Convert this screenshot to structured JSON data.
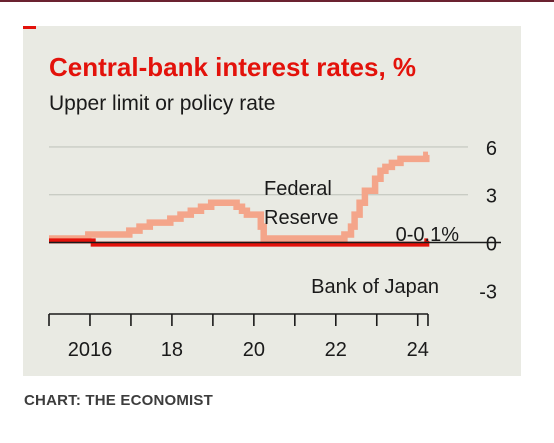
{
  "credit": "CHART: THE ECONOMIST",
  "colors": {
    "accent": "#e3120b",
    "fed_line": "#f4a58a",
    "boj_line": "#e3120b",
    "background": "#e9eae3",
    "grid": "#c9ccc4",
    "text": "#1a1a1a",
    "top_rule": "#6b2230"
  },
  "chart_data": {
    "type": "line",
    "title": "Central-bank interest rates, %",
    "subtitle": "Upper limit or policy rate",
    "xlabel": "",
    "ylabel": "",
    "xlim": [
      2015.0,
      2025.3
    ],
    "ylim": [
      -3.8,
      6.5
    ],
    "y_ticks": [
      6,
      3,
      0,
      -3
    ],
    "y_tick_labels": [
      "6",
      "3",
      "0",
      "-3"
    ],
    "y_gridlines": [
      6,
      3
    ],
    "zero_line": 0,
    "x_ticks": [
      2015,
      2016,
      2017,
      2018,
      2019,
      2020,
      2021,
      2022,
      2023,
      2024,
      2024.25
    ],
    "x_tick_labels": [
      {
        "value": 2016,
        "label": "2016"
      },
      {
        "value": 2018,
        "label": "18"
      },
      {
        "value": 2020,
        "label": "20"
      },
      {
        "value": 2022,
        "label": "22"
      },
      {
        "value": 2024,
        "label": "24"
      }
    ],
    "grid": true,
    "series": [
      {
        "name": "Federal Reserve",
        "color": "#f4a58a",
        "step": true,
        "x": [
          2015.0,
          2015.96,
          2016.96,
          2017.21,
          2017.46,
          2017.96,
          2018.21,
          2018.46,
          2018.71,
          2018.96,
          2019.58,
          2019.71,
          2019.83,
          2020.17,
          2020.24,
          2022.21,
          2022.37,
          2022.46,
          2022.58,
          2022.71,
          2022.96,
          2023.09,
          2023.21,
          2023.37,
          2023.58,
          2024.21
        ],
        "y": [
          0.25,
          0.5,
          0.75,
          1.0,
          1.25,
          1.5,
          1.75,
          2.0,
          2.25,
          2.5,
          2.25,
          2.0,
          1.75,
          1.0,
          0.25,
          0.5,
          1.0,
          1.75,
          2.5,
          3.25,
          4.0,
          4.5,
          4.75,
          5.0,
          5.25,
          5.5
        ],
        "end_x": 2024.25
      },
      {
        "name": "Bank of Japan",
        "color": "#e3120b",
        "step": true,
        "x": [
          2015.0,
          2016.08,
          2024.22
        ],
        "y": [
          0.1,
          -0.1,
          0.1
        ],
        "end_x": 2024.25
      }
    ],
    "annotations": [
      {
        "series": "Federal Reserve",
        "lines": [
          "Federal",
          "Reserve"
        ]
      },
      {
        "series": "Bank of Japan",
        "lines": [
          "Bank of Japan"
        ]
      },
      {
        "series": "Bank of Japan",
        "lines": [
          "0-0.1%"
        ]
      }
    ]
  }
}
